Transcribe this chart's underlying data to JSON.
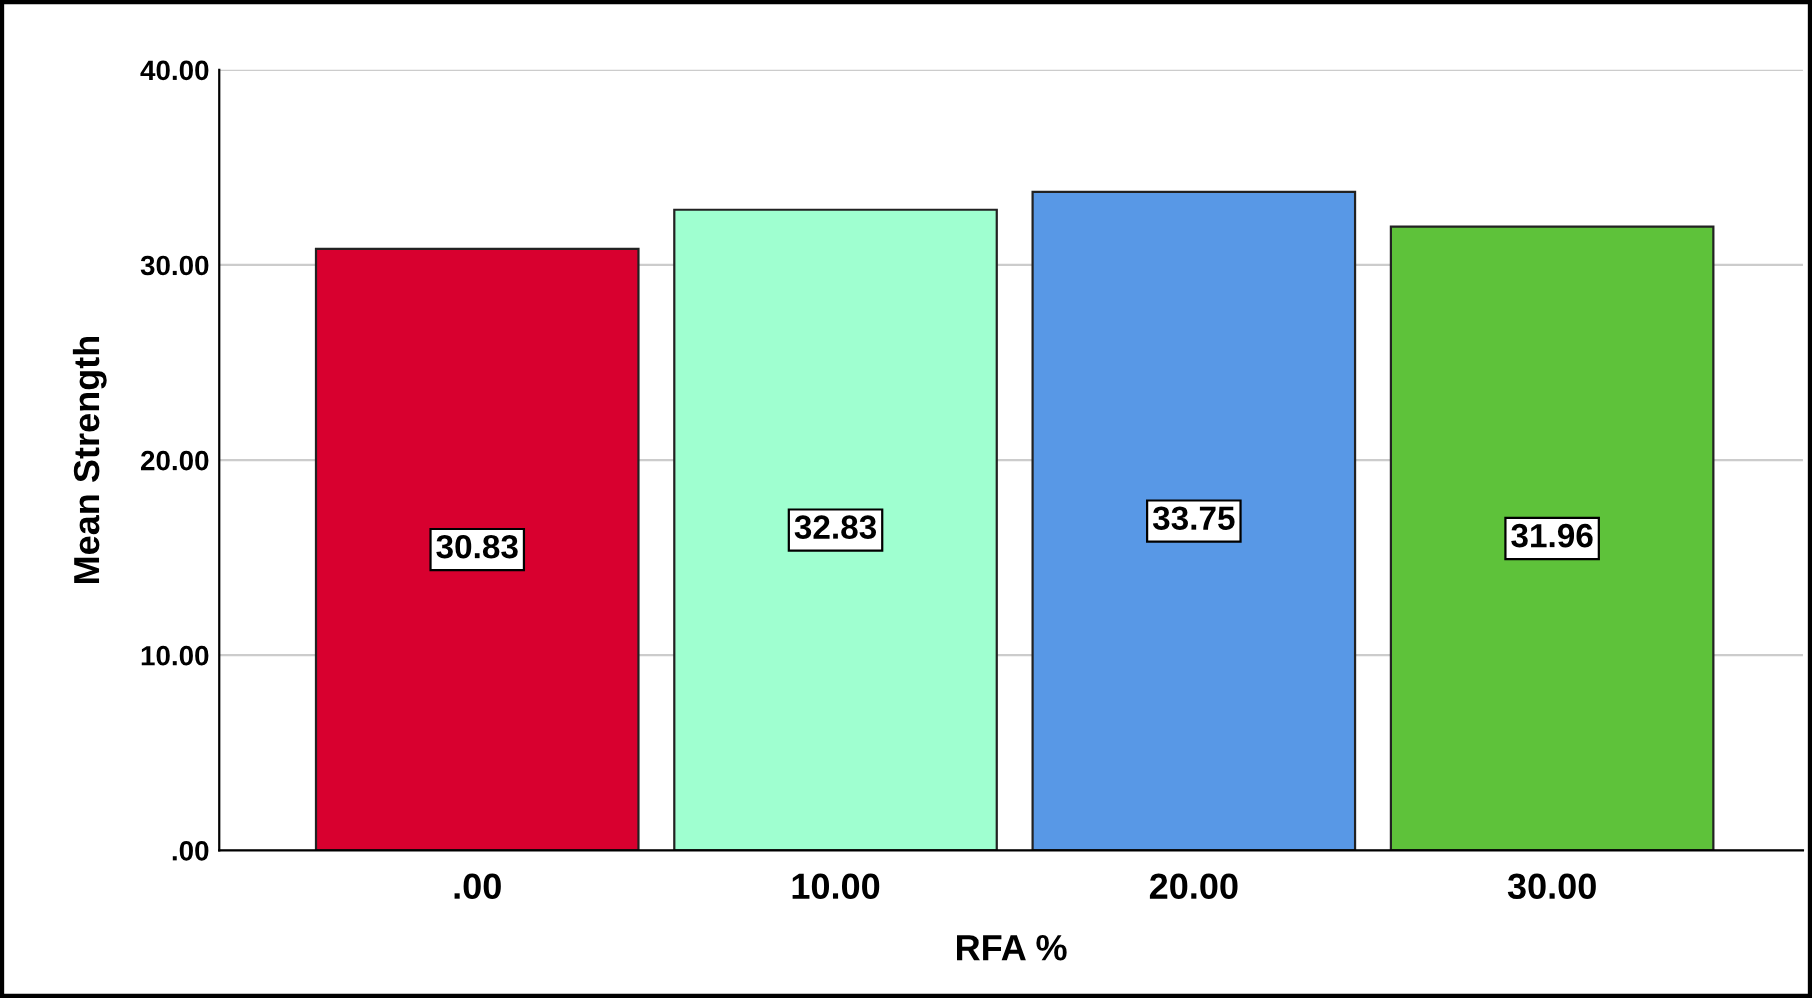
{
  "chart_data": {
    "type": "bar",
    "xlabel": "RFA %",
    "ylabel": "Mean Strength",
    "categories": [
      ".00",
      "10.00",
      "20.00",
      "30.00"
    ],
    "values": [
      30.83,
      32.83,
      33.75,
      31.96
    ],
    "colors": [
      "#d8002f",
      "#9fffd0",
      "#5898e6",
      "#5ec23a"
    ],
    "ylim": [
      0,
      40
    ],
    "yticks": [
      {
        "value": 0,
        "label": ".00"
      },
      {
        "value": 10,
        "label": "10.00"
      },
      {
        "value": 20,
        "label": "20.00"
      },
      {
        "value": 30,
        "label": "30.00"
      },
      {
        "value": 40,
        "label": "40.00"
      }
    ],
    "grid": "y",
    "data_labels": true,
    "legend": false
  }
}
